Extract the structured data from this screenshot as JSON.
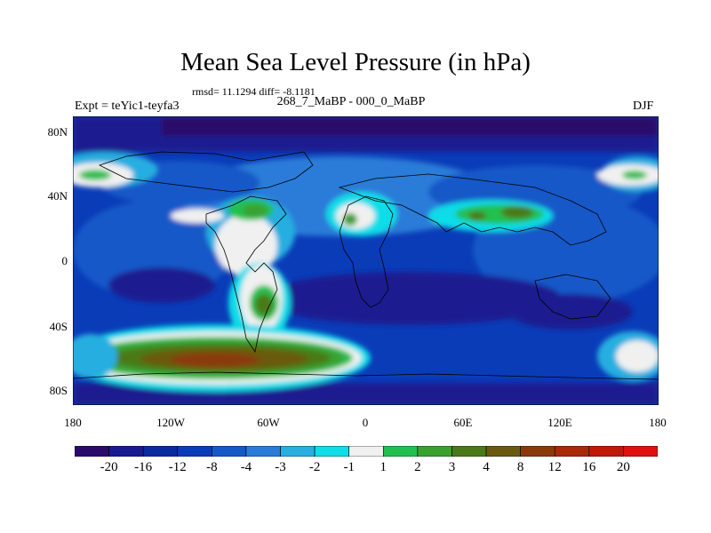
{
  "title": "Mean Sea Level Pressure (in hPa)",
  "stats": "rmsd= 11.1294 diff= -8.1181",
  "subtitle": "268_7_MaBP - 000_0_MaBP",
  "left_label": "Expt = teYic1-teyfa3",
  "right_label": "DJF",
  "y_ticks": [
    "80N",
    "40N",
    "0",
    "40S",
    "80S"
  ],
  "x_ticks": [
    "180",
    "120W",
    "60W",
    "0",
    "60E",
    "120E",
    "180"
  ],
  "colorbar": {
    "labels": [
      "-20",
      "-16",
      "-12",
      "-8",
      "-4",
      "-3",
      "-2",
      "-1",
      "1",
      "2",
      "3",
      "4",
      "8",
      "12",
      "16",
      "20"
    ],
    "colors": [
      "#2a0a6a",
      "#1a1a90",
      "#0a2aa0",
      "#0a3cb8",
      "#1459c8",
      "#2a7cd8",
      "#28aee0",
      "#10dde8",
      "#f0f0f0",
      "#20c050",
      "#3aa030",
      "#4a7a18",
      "#6a5a10",
      "#8a3a0a",
      "#a82a08",
      "#c01808",
      "#e01010"
    ]
  }
}
